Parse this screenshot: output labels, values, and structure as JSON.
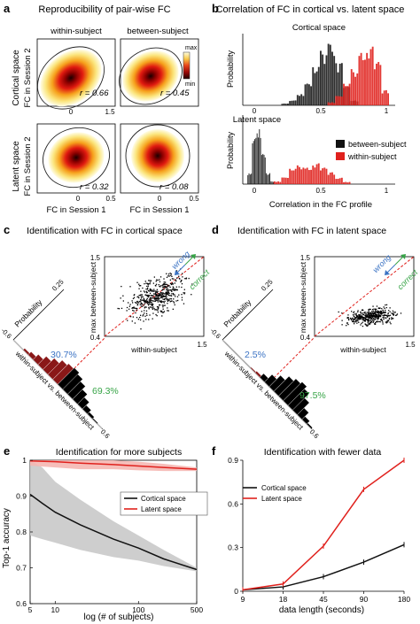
{
  "panels": {
    "a": {
      "letter": "a",
      "title": "Reproducibility of pair-wise FC",
      "col_labels": [
        "within-subject",
        "between-subject"
      ],
      "row_labels": [
        [
          "Cortical space",
          "FC in Session 2"
        ],
        [
          "Latent space",
          "FC in Session 2"
        ]
      ],
      "colorbar": {
        "max": "max",
        "min": "min"
      },
      "r_values": [
        "r = 0.66",
        "r = 0.45",
        "r = 0.32",
        "r = 0.08"
      ],
      "xlabel": "FC in Session 1",
      "ticks_top": [
        "0",
        "1.5"
      ],
      "ticks_bottom": [
        "0",
        "0.5"
      ]
    },
    "b": {
      "letter": "b",
      "title": "Correlation of FC in cortical vs. latent space",
      "sub_top": "Cortical space",
      "sub_bottom": "Latent space",
      "ylabel": "Probability",
      "xlabel": "Correlation in the FC profile",
      "ticks_top": [
        "0",
        "0.5",
        "1"
      ],
      "ticks_bottom": [
        "0",
        "0.5",
        "1"
      ],
      "legend": [
        "between-subject",
        "within-subject"
      ]
    },
    "c": {
      "letter": "c",
      "title": "Identification with FC in cortical space",
      "scatter_xlabel": "within-subject",
      "scatter_ylabel": "max between-subject",
      "ticks": [
        "0.4",
        "1.5",
        "1.5"
      ],
      "wrong": "wrong",
      "correct": "correct",
      "prob_label": "Probability",
      "prob_tick": "0.25",
      "diff_label": "within-subject vs. between-subject",
      "diff_ticks": [
        "-0.6",
        "0.6"
      ],
      "pct_wrong": "30.7%",
      "pct_correct": "69.3%"
    },
    "d": {
      "letter": "d",
      "title": "Identification with FC in latent space",
      "scatter_xlabel": "within-subject",
      "scatter_ylabel": "max between-subject",
      "ticks": [
        "0.4",
        "1.5",
        "1.5"
      ],
      "wrong": "wrong",
      "correct": "correct",
      "prob_label": "Probability",
      "prob_tick": "0.25",
      "diff_label": "within-subject vs. between-subject",
      "diff_ticks": [
        "-0.6",
        "0.6"
      ],
      "pct_wrong": "2.5%",
      "pct_correct": "97.5%"
    },
    "e": {
      "letter": "e",
      "title": "Identification for more subjects"
    },
    "f": {
      "letter": "f",
      "title": "Identification with fewer data"
    }
  },
  "colors": {
    "red": "#e0211d",
    "black": "#111111",
    "blue": "#3b73c4",
    "green": "#37a447",
    "grey_band": "#c9c9c9",
    "pink_band": "#f5b7b3"
  },
  "chart_data": [
    {
      "id": "b-top",
      "type": "bar",
      "title": "Cortical space",
      "xlim": [
        0,
        1
      ],
      "ylabel": "Probability",
      "series": [
        {
          "name": "between-subject",
          "x": [
            0.25,
            0.3,
            0.35,
            0.4,
            0.45,
            0.5,
            0.55,
            0.6,
            0.65,
            0.7
          ],
          "values": [
            0.03,
            0.08,
            0.18,
            0.35,
            0.62,
            0.88,
            1.0,
            0.7,
            0.3,
            0.08
          ]
        },
        {
          "name": "within-subject",
          "x": [
            0.55,
            0.6,
            0.65,
            0.7,
            0.75,
            0.8,
            0.85,
            0.9
          ],
          "values": [
            0.05,
            0.15,
            0.35,
            0.6,
            0.85,
            0.95,
            0.7,
            0.25
          ]
        }
      ]
    },
    {
      "id": "b-bottom",
      "type": "bar",
      "title": "Latent space",
      "xlim": [
        0,
        1
      ],
      "ylabel": "Probability",
      "xlabel": "Correlation in the FC profile",
      "series": [
        {
          "name": "between-subject",
          "x": [
            0.03,
            0.06,
            0.09,
            0.12,
            0.15,
            0.18
          ],
          "values": [
            0.2,
            0.85,
            1.0,
            0.55,
            0.2,
            0.05
          ]
        },
        {
          "name": "within-subject",
          "x": [
            0.2,
            0.25,
            0.3,
            0.35,
            0.4,
            0.45,
            0.5,
            0.55,
            0.6,
            0.65
          ],
          "values": [
            0.05,
            0.12,
            0.28,
            0.35,
            0.3,
            0.38,
            0.3,
            0.22,
            0.12,
            0.04
          ]
        }
      ]
    },
    {
      "id": "e",
      "type": "line",
      "title": "Identification for more subjects",
      "xlabel": "log (# of subjects)",
      "ylabel": "Top-1 accuracy",
      "xscale": "log",
      "xlim": [
        5,
        500
      ],
      "ylim": [
        0.6,
        1.0
      ],
      "xticks": [
        "5",
        "10",
        "100",
        "500"
      ],
      "yticks": [
        "0.6",
        "0.7",
        "0.8",
        "0.9",
        "1"
      ],
      "legend": "center-right",
      "series": [
        {
          "name": "Cortical space",
          "x": [
            5,
            7,
            10,
            20,
            50,
            100,
            200,
            500
          ],
          "values": [
            0.905,
            0.88,
            0.855,
            0.82,
            0.78,
            0.755,
            0.725,
            0.695
          ],
          "band": [
            [
              0.79,
              1.0
            ],
            [
              0.78,
              0.98
            ],
            [
              0.77,
              0.94
            ],
            [
              0.75,
              0.89
            ],
            [
              0.73,
              0.83
            ],
            [
              0.72,
              0.79
            ],
            [
              0.705,
              0.75
            ],
            [
              0.69,
              0.7
            ]
          ]
        },
        {
          "name": "Latent space",
          "x": [
            5,
            10,
            20,
            50,
            100,
            200,
            500
          ],
          "values": [
            0.998,
            0.996,
            0.992,
            0.988,
            0.984,
            0.98,
            0.975
          ],
          "band": [
            [
              0.985,
              1.0
            ],
            [
              0.98,
              1.0
            ],
            [
              0.975,
              1.0
            ],
            [
              0.975,
              1.0
            ],
            [
              0.972,
              0.996
            ],
            [
              0.97,
              0.99
            ],
            [
              0.97,
              0.98
            ]
          ]
        }
      ]
    },
    {
      "id": "f",
      "type": "line",
      "title": "Identification with fewer data",
      "xlabel": "data length (seconds)",
      "categories": [
        "9",
        "18",
        "45",
        "90",
        "180"
      ],
      "ylim": [
        0,
        0.9
      ],
      "yticks": [
        "0",
        "0.3",
        "0.6",
        "0.9"
      ],
      "legend": "top-left",
      "series": [
        {
          "name": "Cortical space",
          "values": [
            0.01,
            0.03,
            0.1,
            0.2,
            0.32
          ]
        },
        {
          "name": "Latent space",
          "values": [
            0.01,
            0.05,
            0.31,
            0.7,
            0.9
          ]
        }
      ]
    }
  ]
}
